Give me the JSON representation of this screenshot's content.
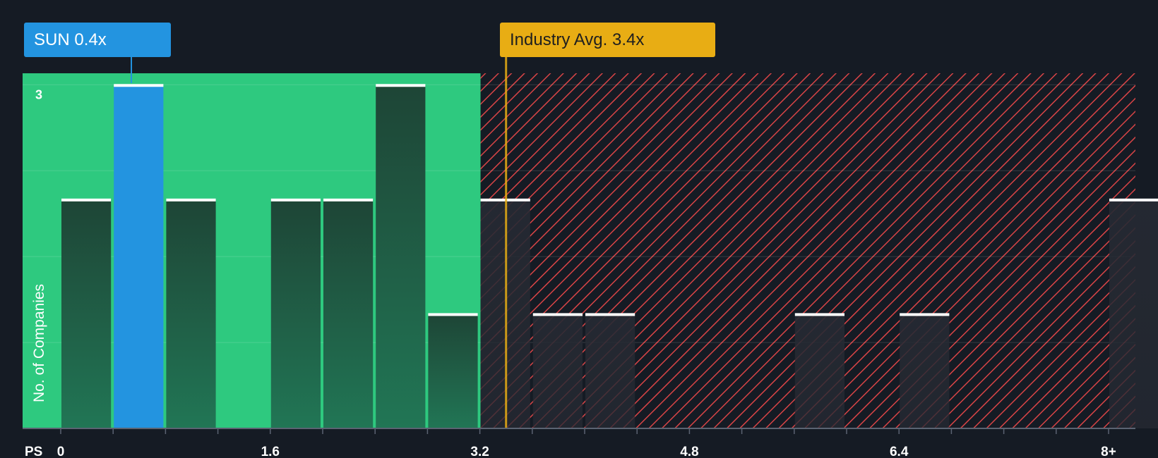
{
  "colors": {
    "background": "#151b24",
    "fair_zone": "#2ec97f",
    "overvalued_zone": "#d94446",
    "company_bar": "#2394e0",
    "industry_marker": "#e8ad14",
    "bar_cap": "#ffffff"
  },
  "callouts": {
    "company": {
      "ticker": "SUN",
      "value": "0.4x"
    },
    "industry": {
      "label": "Industry Avg.",
      "value": "3.4x"
    }
  },
  "chart_data": {
    "type": "bar",
    "title": "",
    "xlabel": "PS",
    "ylabel": "No. of Companies",
    "bin_width": 0.4,
    "xlim": [
      -0.3,
      8.2
    ],
    "ylim": [
      0,
      3.1
    ],
    "x_ticks": [
      0,
      1.6,
      3.2,
      4.8,
      6.4,
      8
    ],
    "x_tick_labels": [
      "0",
      "1.6",
      "3.2",
      "4.8",
      "6.4",
      "8+"
    ],
    "y_tick_labels": [
      {
        "value": 3,
        "label": "3"
      }
    ],
    "y_gridlines": [
      0.75,
      1.5,
      2.25,
      3
    ],
    "bins": [
      {
        "start": 0.0,
        "count": 2
      },
      {
        "start": 0.4,
        "count": 3,
        "highlight": true
      },
      {
        "start": 0.8,
        "count": 2
      },
      {
        "start": 1.6,
        "count": 2
      },
      {
        "start": 2.0,
        "count": 2
      },
      {
        "start": 2.4,
        "count": 3
      },
      {
        "start": 2.8,
        "count": 1
      },
      {
        "start": 3.2,
        "count": 2
      },
      {
        "start": 3.6,
        "count": 1
      },
      {
        "start": 4.0,
        "count": 1
      },
      {
        "start": 5.6,
        "count": 1
      },
      {
        "start": 6.4,
        "count": 1
      },
      {
        "start": 8.0,
        "count": 2
      }
    ],
    "company_value": 0.4,
    "industry_avg": 3.4,
    "fair_range_end": 3.2
  }
}
